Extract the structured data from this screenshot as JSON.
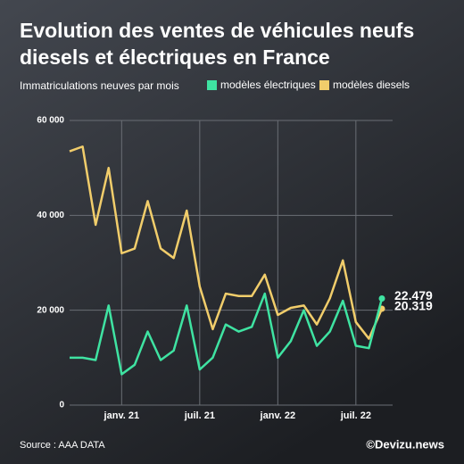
{
  "chart_data": {
    "type": "line",
    "title": [
      "Evolution des ventes de véhicules neufs",
      "diesels et électriques en France"
    ],
    "subtitle": "Immatriculations neuves par mois",
    "source": "Source : AAA DATA",
    "credit": "©Devizu.news",
    "categories": [
      null,
      null,
      null,
      null,
      "janv. 21",
      null,
      null,
      null,
      null,
      null,
      "juil. 21",
      null,
      null,
      null,
      null,
      null,
      "janv. 22",
      null,
      null,
      null,
      null,
      null,
      "juil. 22",
      null,
      null
    ],
    "series": [
      {
        "name": "modèles électriques",
        "color": "#3fe3a2",
        "values": [
          10000,
          10000,
          9500,
          21000,
          6500,
          8500,
          15500,
          9500,
          11500,
          21000,
          7500,
          10000,
          17000,
          15500,
          16500,
          23500,
          10000,
          13500,
          20000,
          12500,
          15500,
          22000,
          12500,
          12000,
          22479
        ],
        "value_labels": [
          null,
          null,
          null,
          null,
          null,
          null,
          null,
          null,
          null,
          null,
          null,
          null,
          null,
          null,
          null,
          null,
          null,
          null,
          null,
          null,
          null,
          null,
          null,
          null,
          "22.479"
        ]
      },
      {
        "name": "modèles diesels",
        "color": "#f1cd6b",
        "values": [
          53500,
          54500,
          38000,
          50000,
          32000,
          33000,
          43000,
          33000,
          31000,
          41000,
          25000,
          16000,
          23500,
          23000,
          23000,
          27500,
          19000,
          20500,
          21000,
          17000,
          22500,
          30500,
          17500,
          14000,
          20319
        ],
        "value_labels": [
          null,
          null,
          null,
          null,
          null,
          null,
          null,
          null,
          null,
          null,
          null,
          null,
          null,
          null,
          null,
          null,
          null,
          null,
          null,
          null,
          null,
          null,
          null,
          null,
          "20.319"
        ]
      }
    ],
    "ylim": [
      0,
      60000
    ],
    "yticks": [
      0,
      {
        "value": 20000,
        "label": "20 000"
      },
      {
        "value": 40000,
        "label": "40 000"
      },
      {
        "value": 60000,
        "label": "60 000"
      }
    ],
    "grid": true
  }
}
